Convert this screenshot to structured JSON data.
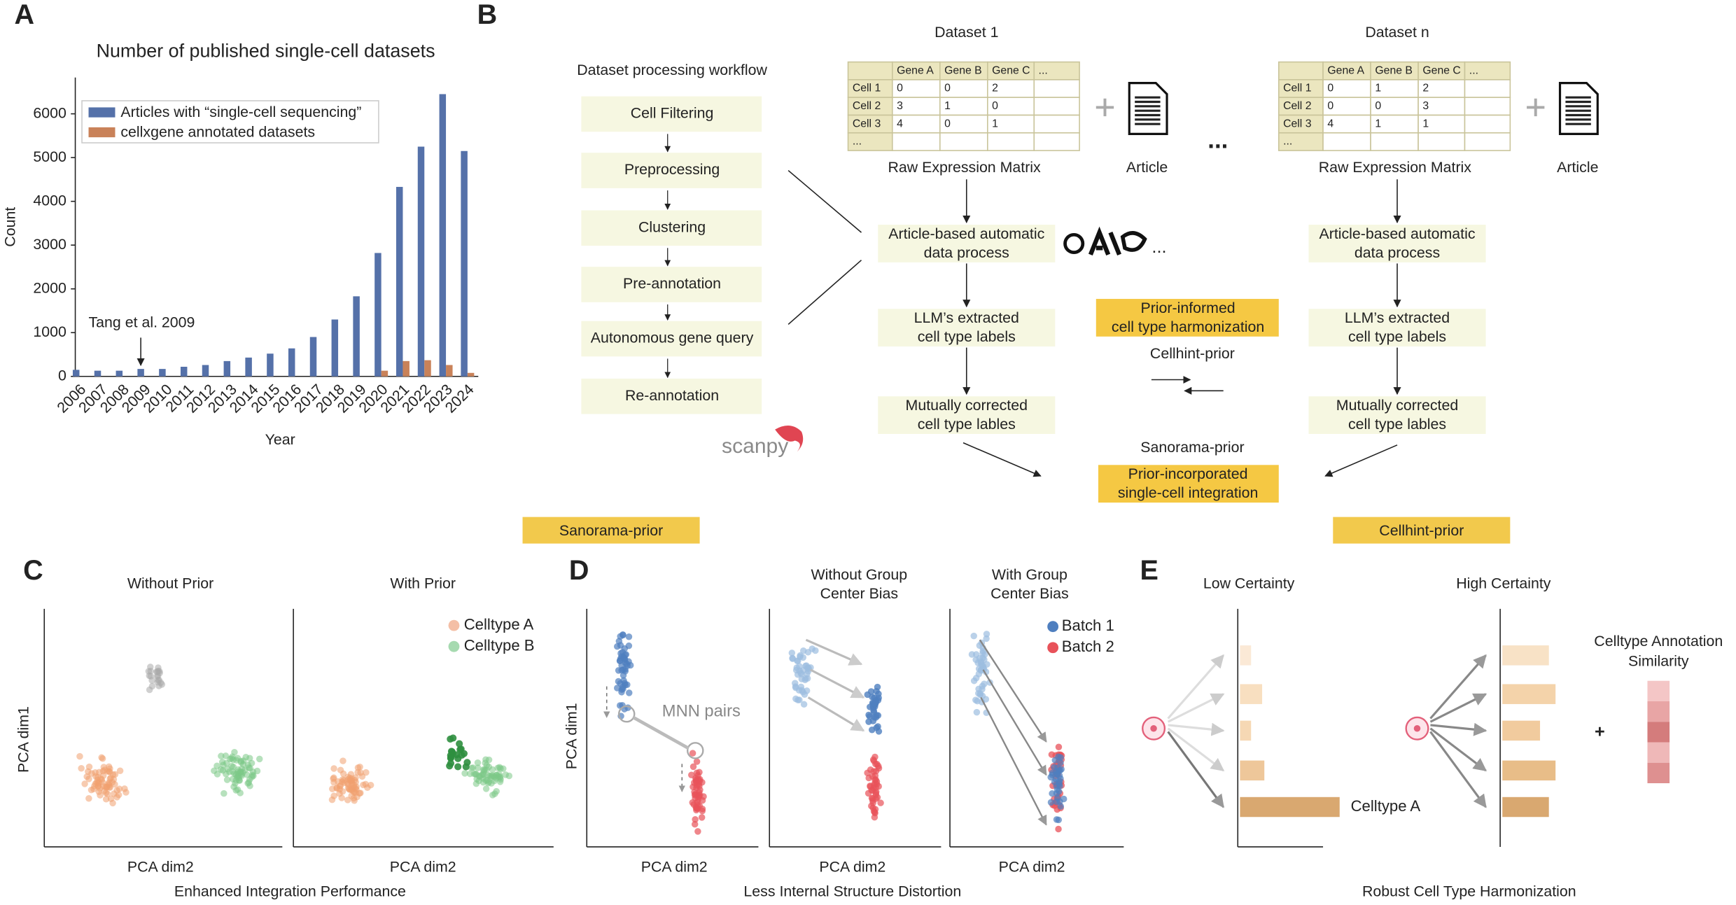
{
  "panel_labels": [
    "A",
    "B",
    "C",
    "D",
    "E"
  ],
  "chart_data": {
    "type": "bar",
    "title": "Number of published single-cell datasets",
    "xlabel": "Year",
    "ylabel": "Count",
    "categories": [
      "2006",
      "2007",
      "2008",
      "2009",
      "2010",
      "2011",
      "2012",
      "2013",
      "2014",
      "2015",
      "2016",
      "2017",
      "2018",
      "2019",
      "2020",
      "2021",
      "2022",
      "2023",
      "2024"
    ],
    "series": [
      {
        "name": "Articles with “single-cell sequencing”",
        "color": "#5571a9",
        "values": [
          150,
          130,
          130,
          170,
          170,
          220,
          260,
          350,
          430,
          520,
          640,
          900,
          1300,
          1830,
          2820,
          4330,
          5250,
          6450,
          5150
        ]
      },
      {
        "name": "cellxgene annotated datasets",
        "color": "#c98259",
        "values": [
          0,
          0,
          0,
          0,
          0,
          0,
          0,
          0,
          0,
          0,
          0,
          0,
          0,
          0,
          130,
          350,
          370,
          260,
          80
        ]
      }
    ],
    "ylim": [
      0,
      6830
    ],
    "yticks": [
      0,
      1000,
      2000,
      3000,
      4000,
      5000,
      6000
    ],
    "legend": "upper left",
    "annotation": {
      "text": "Tang et al. 2009",
      "category": 3
    }
  },
  "workflow": {
    "title": "Dataset processing workflow",
    "steps": [
      "Cell Filtering",
      "Preprocessing",
      "Clustering",
      "Pre-annotation",
      "Autonomous gene query",
      "Re-annotation"
    ],
    "tool": "scanpy"
  },
  "datasets": [
    {
      "title": "Dataset 1",
      "columns": [
        "Gene A",
        "Gene B",
        "Gene C",
        "..."
      ],
      "rows": [
        [
          "Cell 1",
          "0",
          "0",
          "2"
        ],
        [
          "Cell 2",
          "3",
          "1",
          "0"
        ],
        [
          "Cell 3",
          "4",
          "0",
          "1"
        ],
        [
          "..."
        ]
      ],
      "matrix_label": "Raw Expression Matrix",
      "article": "Article",
      "steps": [
        [
          "Article-based automatic",
          "data process"
        ],
        [
          "LLM’s extracted",
          "cell type labels"
        ],
        [
          "Mutually corrected",
          "cell type lables"
        ]
      ]
    },
    {
      "title": "Dataset n",
      "columns": [
        "Gene A",
        "Gene B",
        "Gene C",
        "..."
      ],
      "rows": [
        [
          "Cell 1",
          "0",
          "1",
          "2"
        ],
        [
          "Cell 2",
          "0",
          "0",
          "3"
        ],
        [
          "Cell 3",
          "4",
          "1",
          "1"
        ],
        [
          "..."
        ]
      ],
      "matrix_label": "Raw Expression Matrix",
      "article": "Article",
      "steps": [
        [
          "Article-based automatic",
          "data process"
        ],
        [
          "LLM’s extracted",
          "cell type labels"
        ],
        [
          "Mutually corrected",
          "cell type lables"
        ]
      ]
    }
  ],
  "between_datasets": "...",
  "llm_more": "...",
  "center": {
    "harmonization": [
      "Prior-informed",
      "cell type harmonization"
    ],
    "cellhint": "Cellhint-prior",
    "sanorama": "Sanorama-prior",
    "integration": [
      "Prior-incorporated",
      "single-cell integration"
    ]
  },
  "tags": [
    "Sanorama-prior",
    "Cellhint-prior"
  ],
  "panel_c": {
    "titles": [
      "Without Prior",
      "With Prior"
    ],
    "legend": [
      "Celltype A",
      "Celltype B"
    ],
    "ylabel": "PCA dim1",
    "xlabels": [
      "PCA dim2",
      "PCA dim2"
    ],
    "caption": "Enhanced Integration Performance"
  },
  "panel_d": {
    "titles": [
      [
        "Without Group",
        "Center Bias"
      ],
      [
        "With Group",
        "Center Bias"
      ]
    ],
    "annotation": "MNN pairs",
    "legend": [
      "Batch 1",
      "Batch 2"
    ],
    "ylabel": "PCA dim1",
    "xlabels": [
      "PCA dim2",
      "PCA dim2",
      "PCA dim2"
    ],
    "caption": "Less Internal Structure Distortion"
  },
  "panel_e": {
    "titles": [
      "Low Certainty",
      "High Certainty"
    ],
    "label": "Celltype A",
    "plus": "+",
    "side": [
      "Celltype Annotation",
      "Similarity"
    ],
    "caption": "Robust Cell Type Harmonization"
  }
}
